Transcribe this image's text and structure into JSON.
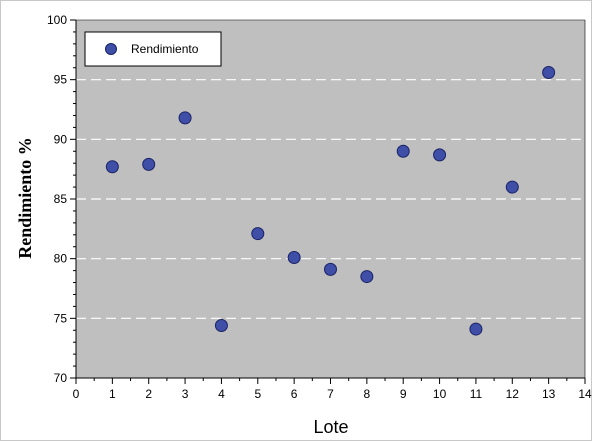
{
  "chart_data": {
    "type": "scatter",
    "title": "",
    "xlabel": "Lote",
    "ylabel": "Rendimiento %",
    "xlim": [
      0,
      14
    ],
    "ylim": [
      70,
      100
    ],
    "xticks": [
      0,
      1,
      2,
      3,
      4,
      5,
      6,
      7,
      8,
      9,
      10,
      11,
      12,
      13,
      14
    ],
    "yticks": [
      70,
      75,
      80,
      85,
      90,
      95,
      100
    ],
    "grid": "horizontal dashed white lines",
    "background": "#bfbfbf",
    "legend_position": "top-left",
    "series": [
      {
        "name": "Rendimiento",
        "color": "#3f4fa8",
        "points": [
          {
            "x": 1,
            "y": 87.7
          },
          {
            "x": 2,
            "y": 87.9
          },
          {
            "x": 3,
            "y": 91.8
          },
          {
            "x": 4,
            "y": 74.4
          },
          {
            "x": 5,
            "y": 82.1
          },
          {
            "x": 6,
            "y": 80.1
          },
          {
            "x": 7,
            "y": 79.1
          },
          {
            "x": 8,
            "y": 78.5
          },
          {
            "x": 9,
            "y": 89.0
          },
          {
            "x": 10,
            "y": 88.7
          },
          {
            "x": 11,
            "y": 74.1
          },
          {
            "x": 12,
            "y": 86.0
          },
          {
            "x": 13,
            "y": 95.6
          }
        ]
      }
    ]
  }
}
